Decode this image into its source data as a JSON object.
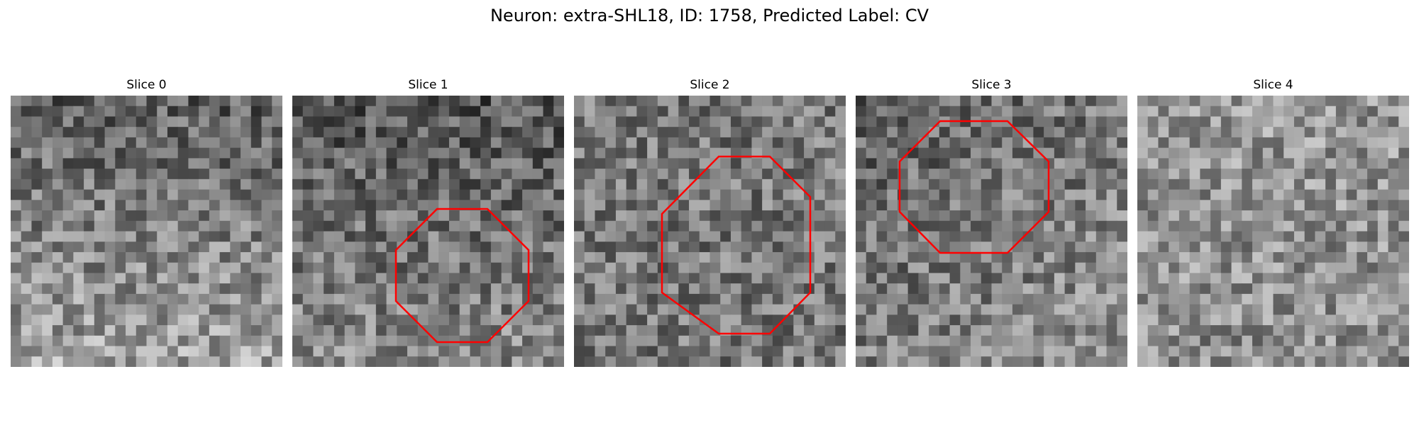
{
  "figure": {
    "title": "Neuron: extra-SHL18, ID: 1758, Predicted Label: CV"
  },
  "panels": [
    {
      "title": "Slice 0",
      "roi": false,
      "brightness_trend": "bottom-lighter"
    },
    {
      "title": "Slice 1",
      "roi": true,
      "roi_color": "#ff0000",
      "brightness_trend": "dark-top"
    },
    {
      "title": "Slice 2",
      "roi": true,
      "roi_color": "#ff0000",
      "brightness_trend": "uniform"
    },
    {
      "title": "Slice 3",
      "roi": true,
      "roi_color": "#ff0000",
      "brightness_trend": "dark-top-left"
    },
    {
      "title": "Slice 4",
      "roi": false,
      "brightness_trend": "light"
    }
  ],
  "colors": {
    "colormap": "grayscale",
    "roi_outline": "#ff0000"
  }
}
